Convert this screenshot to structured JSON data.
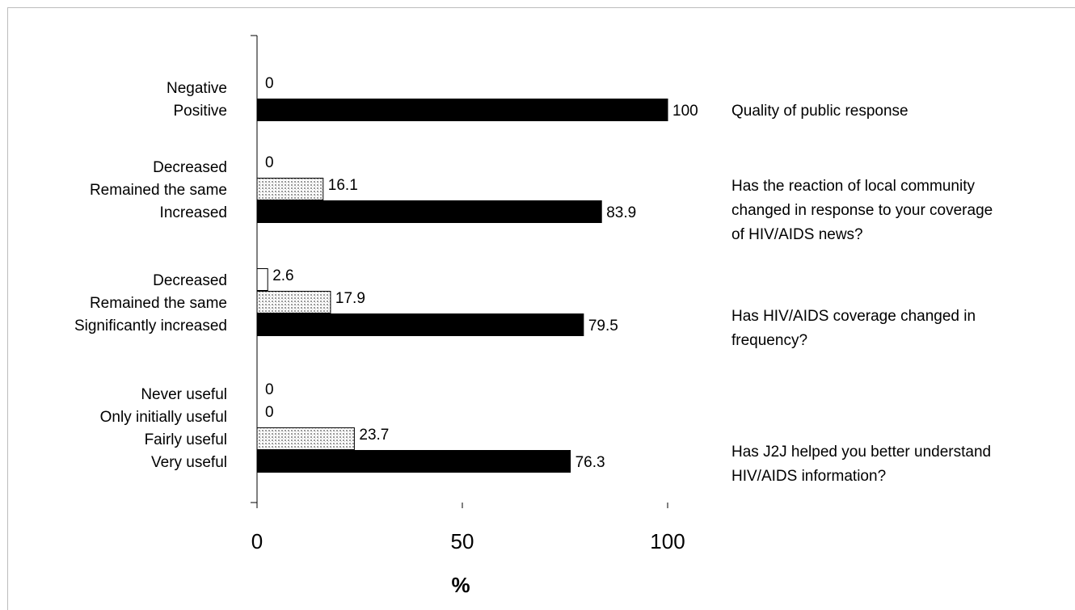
{
  "chart_data": {
    "type": "bar",
    "orientation": "horizontal",
    "xlabel": "%",
    "xlim": [
      0,
      100
    ],
    "xticks": [
      0,
      50,
      100
    ],
    "grid": false,
    "legend": "none",
    "colors": {
      "black": "#000000",
      "dotted": "#d9d9d9",
      "white": "#ffffff"
    },
    "groups": [
      {
        "question": [
          "Quality of public response"
        ],
        "bars": [
          {
            "label": "Negative",
            "value": 0,
            "value_label": "0",
            "fill": "white"
          },
          {
            "label": "Positive",
            "value": 100,
            "value_label": "100",
            "fill": "black"
          }
        ]
      },
      {
        "question": [
          "Has the reaction of local community",
          "changed in response to your coverage",
          "of HIV/AIDS news?"
        ],
        "bars": [
          {
            "label": "Decreased",
            "value": 0,
            "value_label": "0",
            "fill": "white"
          },
          {
            "label": "Remained the same",
            "value": 16.1,
            "value_label": "16.1",
            "fill": "dotted"
          },
          {
            "label": "Increased",
            "value": 83.9,
            "value_label": "83.9",
            "fill": "black"
          }
        ]
      },
      {
        "question": [
          "Has HIV/AIDS coverage changed in",
          "frequency?"
        ],
        "bars": [
          {
            "label": "Decreased",
            "value": 2.6,
            "value_label": "2.6",
            "fill": "white"
          },
          {
            "label": "Remained the same",
            "value": 17.9,
            "value_label": "17.9",
            "fill": "dotted"
          },
          {
            "label": "Significantly increased",
            "value": 79.5,
            "value_label": "79.5",
            "fill": "black"
          }
        ]
      },
      {
        "question": [
          "Has J2J helped you better understand",
          "HIV/AIDS information?"
        ],
        "bars": [
          {
            "label": "Never useful",
            "value": 0,
            "value_label": "0",
            "fill": "white"
          },
          {
            "label": "Only initially useful",
            "value": 0,
            "value_label": "0",
            "fill": "white"
          },
          {
            "label": "Fairly useful",
            "value": 23.7,
            "value_label": "23.7",
            "fill": "dotted"
          },
          {
            "label": "Very useful",
            "value": 76.3,
            "value_label": "76.3",
            "fill": "black"
          }
        ]
      }
    ]
  }
}
